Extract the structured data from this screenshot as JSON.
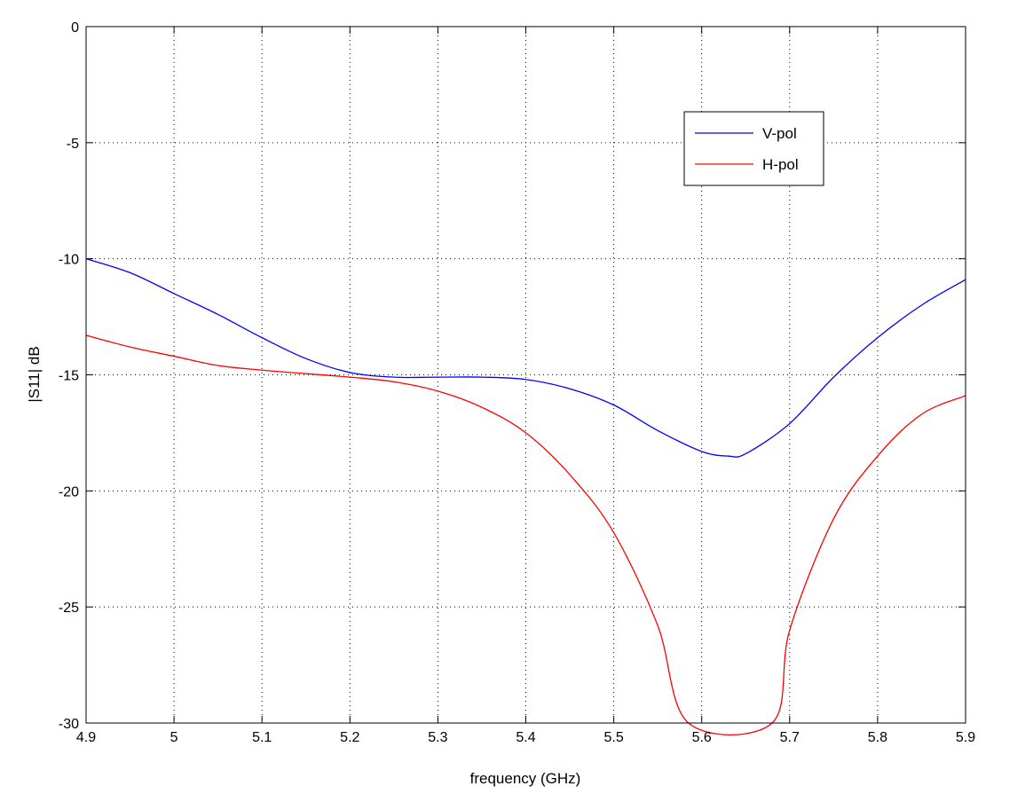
{
  "chart_data": {
    "type": "line",
    "title": "",
    "xlabel": "frequency (GHz)",
    "ylabel": "|S11| dB",
    "xlim": [
      4.9,
      5.9
    ],
    "ylim": [
      -30,
      0
    ],
    "xticks": [
      4.9,
      5.0,
      5.1,
      5.2,
      5.3,
      5.4,
      5.5,
      5.6,
      5.7,
      5.8,
      5.9
    ],
    "xtick_labels": [
      "4.9",
      "5",
      "5.1",
      "5.2",
      "5.3",
      "5.4",
      "5.5",
      "5.6",
      "5.7",
      "5.8",
      "5.9"
    ],
    "yticks": [
      0,
      -5,
      -10,
      -15,
      -20,
      -25,
      -30
    ],
    "ytick_labels": [
      "0",
      "-5",
      "-10",
      "-15",
      "-20",
      "-25",
      "-30"
    ],
    "grid": true,
    "legend_position": "top-right",
    "series": [
      {
        "name": "V-pol",
        "color": "#0000ff",
        "x": [
          4.9,
          4.95,
          5.0,
          5.05,
          5.1,
          5.15,
          5.2,
          5.25,
          5.3,
          5.35,
          5.4,
          5.45,
          5.5,
          5.55,
          5.6,
          5.63,
          5.65,
          5.7,
          5.75,
          5.8,
          5.85,
          5.9
        ],
        "y": [
          -10.0,
          -10.6,
          -11.5,
          -12.4,
          -13.4,
          -14.3,
          -14.9,
          -15.1,
          -15.1,
          -15.1,
          -15.2,
          -15.6,
          -16.3,
          -17.4,
          -18.3,
          -18.5,
          -18.4,
          -17.1,
          -15.1,
          -13.4,
          -12.0,
          -10.9
        ]
      },
      {
        "name": "H-pol",
        "color": "#ff0000",
        "x": [
          4.9,
          4.95,
          5.0,
          5.05,
          5.1,
          5.15,
          5.2,
          5.25,
          5.3,
          5.35,
          5.4,
          5.45,
          5.5,
          5.55,
          5.585,
          5.68,
          5.7,
          5.75,
          5.8,
          5.85,
          5.9
        ],
        "y": [
          -13.3,
          -13.8,
          -14.2,
          -14.6,
          -14.8,
          -14.95,
          -15.1,
          -15.3,
          -15.7,
          -16.4,
          -17.5,
          -19.3,
          -21.8,
          -25.8,
          -30.0,
          -30.0,
          -26.0,
          -21.2,
          -18.5,
          -16.7,
          -15.9
        ]
      }
    ]
  }
}
